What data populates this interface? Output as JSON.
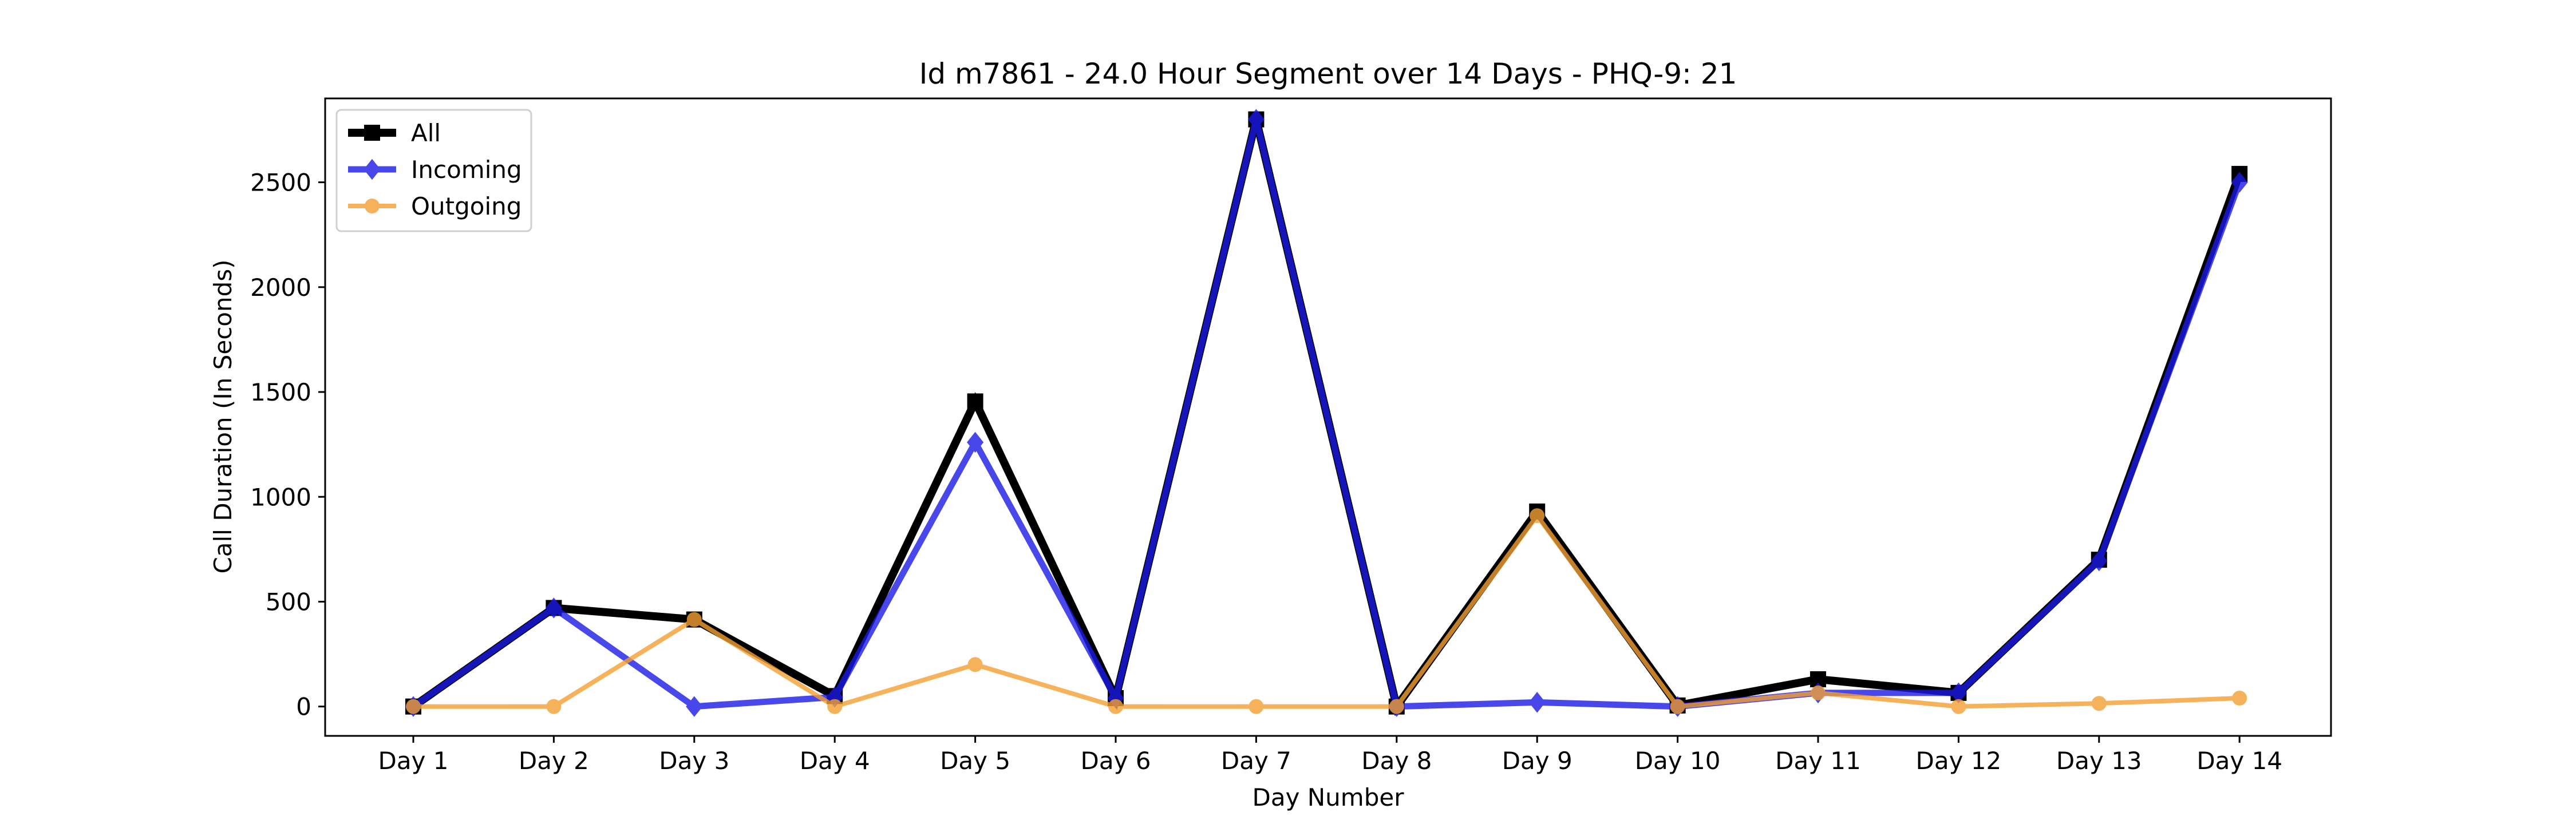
{
  "chart_data": {
    "type": "line",
    "title": "Id m7861 - 24.0 Hour Segment over 14 Days - PHQ-9: 21",
    "xlabel": "Day Number",
    "ylabel": "Call Duration (In Seconds)",
    "categories": [
      "Day 1",
      "Day 2",
      "Day 3",
      "Day 4",
      "Day 5",
      "Day 6",
      "Day 7",
      "Day 8",
      "Day 9",
      "Day 10",
      "Day 11",
      "Day 12",
      "Day 13",
      "Day 14"
    ],
    "ylim": [
      -140,
      2900
    ],
    "yticks": [
      0,
      500,
      1000,
      1500,
      2000,
      2500
    ],
    "grid": false,
    "legend_position": "top-left",
    "series": [
      {
        "name": "All",
        "color": "#000000",
        "marker": "square",
        "values": [
          0,
          470,
          415,
          50,
          1455,
          40,
          2800,
          0,
          930,
          5,
          130,
          65,
          700,
          2540
        ]
      },
      {
        "name": "Incoming",
        "color": "#1a1ae6",
        "marker": "diamond",
        "values": [
          0,
          470,
          0,
          45,
          1260,
          40,
          2800,
          0,
          20,
          0,
          65,
          65,
          695,
          2500
        ]
      },
      {
        "name": "Outgoing",
        "color": "#f5a033",
        "marker": "circle",
        "values": [
          0,
          0,
          415,
          0,
          200,
          0,
          0,
          0,
          910,
          0,
          65,
          0,
          15,
          40
        ]
      }
    ]
  }
}
